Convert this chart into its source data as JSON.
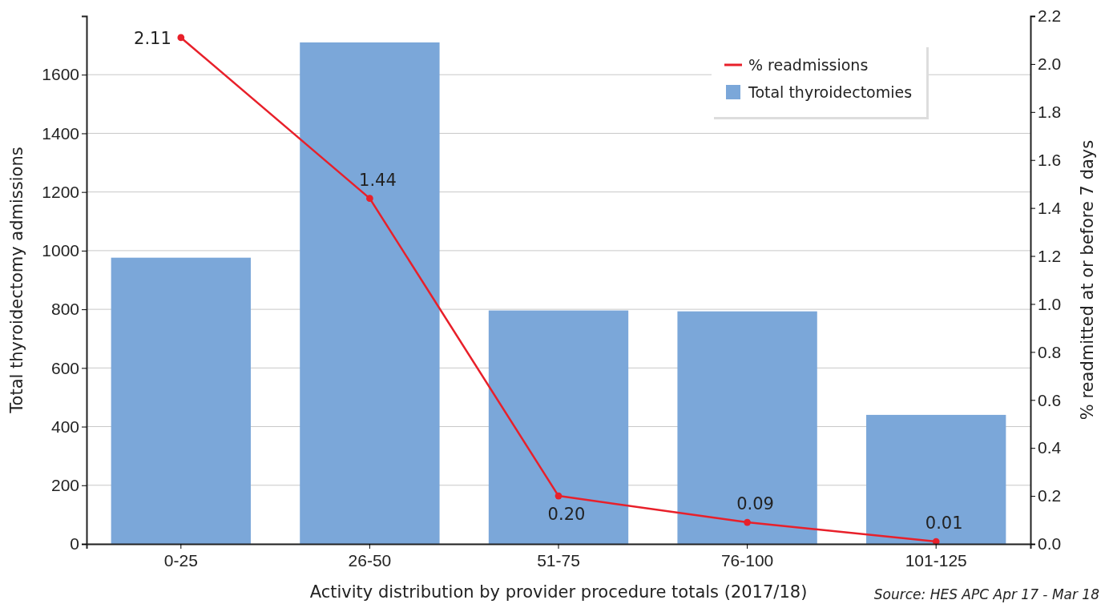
{
  "chart_data": {
    "type": "bar",
    "xlabel": "Activity distribution by provider procedure totals (2017/18)",
    "ylabel": "Total thyroidectomy admissions",
    "y2label": "% readmitted at or before 7 days",
    "categories": [
      "0-25",
      "26-50",
      "51-75",
      "76-100",
      "101-125"
    ],
    "series": [
      {
        "name": "% readmissions",
        "type": "line",
        "axis": "y2",
        "color": "#e8202a",
        "values": [
          2.11,
          1.44,
          0.2,
          0.09,
          0.01
        ],
        "value_labels": [
          "2.11",
          "1.44",
          "0.20",
          "0.09",
          "0.01"
        ]
      },
      {
        "name": "Total thyroidectomies",
        "color": "#7ba7d9",
        "values": [
          976,
          1710,
          796,
          793,
          440
        ]
      }
    ],
    "ylim": [
      0,
      1800
    ],
    "yticks": [
      0,
      200,
      400,
      600,
      800,
      1000,
      1200,
      1400,
      1600
    ],
    "y2lim": [
      0,
      2.2
    ],
    "y2ticks": [
      {
        "value": 0,
        "label": "0.0"
      },
      {
        "value": 0.2,
        "label": "0.2"
      },
      {
        "value": 0.4,
        "label": "0.4"
      },
      {
        "value": 0.6,
        "label": "0.6"
      },
      {
        "value": 0.8,
        "label": "0.8"
      },
      {
        "value": 1.0,
        "label": "1.0"
      },
      {
        "value": 1.2,
        "label": "1.2"
      },
      {
        "value": 1.4,
        "label": "1.4"
      },
      {
        "value": 1.6,
        "label": "1.6"
      },
      {
        "value": 1.8,
        "label": "1.8"
      },
      {
        "value": 2.0,
        "label": "2.0"
      },
      {
        "value": 2.2,
        "label": "2.2"
      }
    ],
    "grid": "y",
    "legend": "top right",
    "marker": "circle",
    "line_style": "solid",
    "annotations": [
      "Source: HES APC Apr 17 - Mar 18"
    ]
  }
}
